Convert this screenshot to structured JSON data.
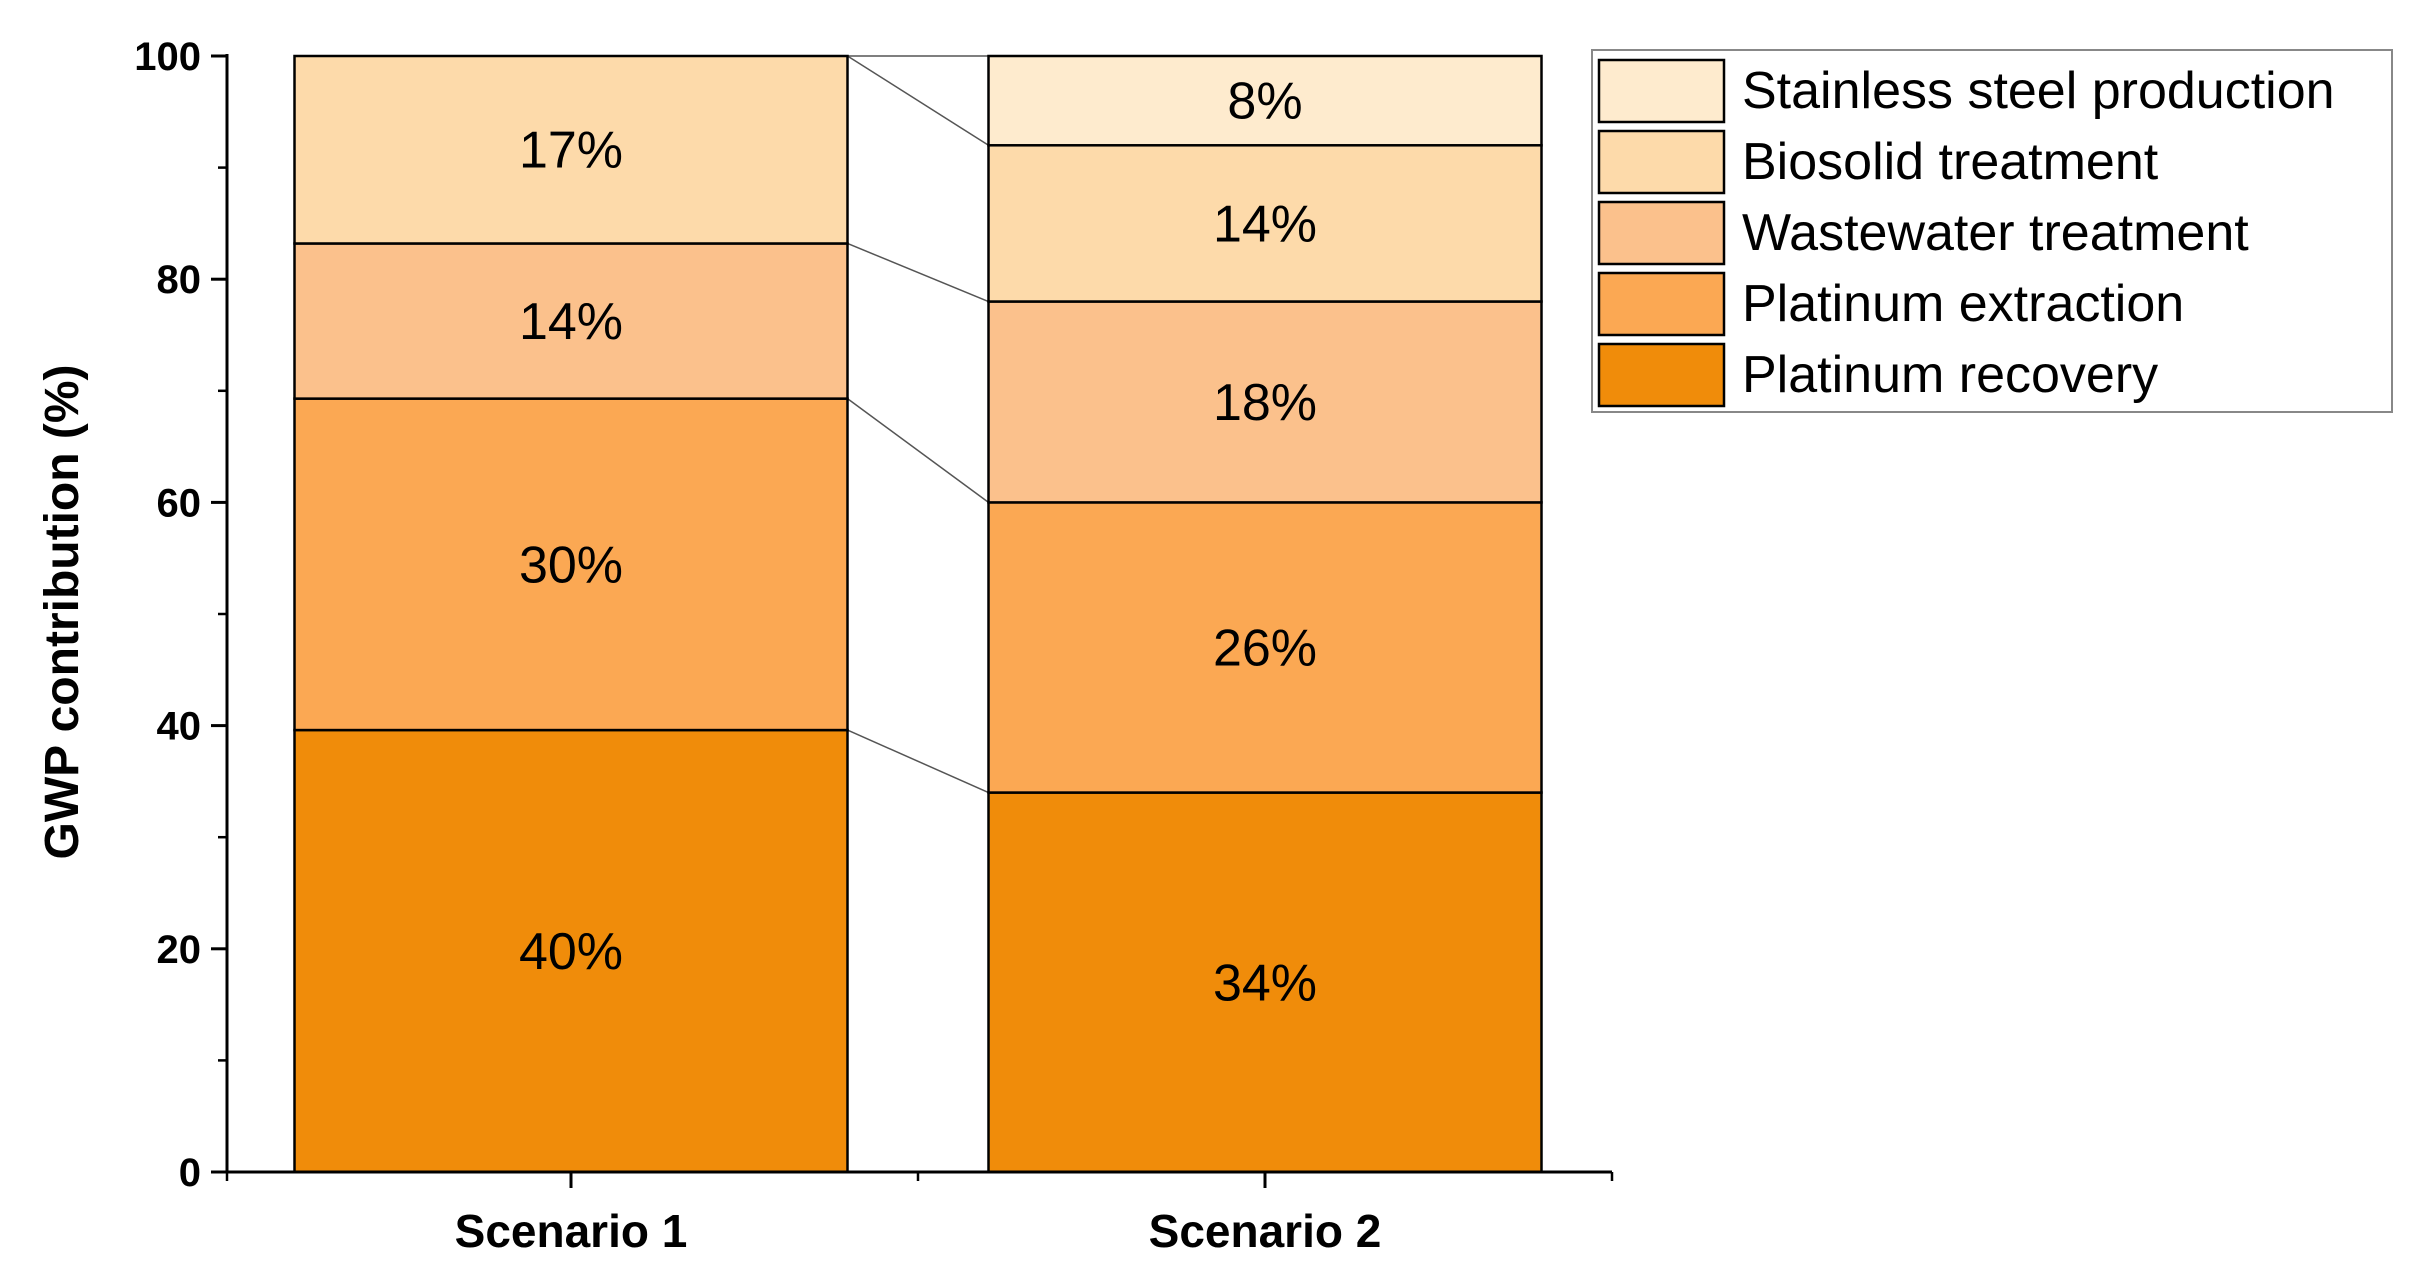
{
  "chart_data": {
    "type": "bar",
    "stacked": true,
    "categories": [
      "Scenario 1",
      "Scenario 2"
    ],
    "ylabel": "GWP contribution (%)",
    "xlabel": "",
    "ylim": [
      0,
      100
    ],
    "yticks": [
      0,
      20,
      40,
      60,
      80,
      100
    ],
    "grid": false,
    "legend_position": "top-right",
    "series": [
      {
        "name": "Platinum recovery",
        "color": "#F08C0A",
        "values": [
          39.6,
          34
        ],
        "labels": [
          "40%",
          "34%"
        ]
      },
      {
        "name": "Platinum extraction",
        "color": "#FBA853",
        "values": [
          29.7,
          26
        ],
        "labels": [
          "30%",
          "26%"
        ]
      },
      {
        "name": "Wastewater treatment",
        "color": "#FBC18C",
        "values": [
          13.9,
          18
        ],
        "labels": [
          "14%",
          "18%"
        ]
      },
      {
        "name": "Biosolid treatment",
        "color": "#FDDAAA",
        "values": [
          16.8,
          14
        ],
        "labels": [
          "17%",
          "14%"
        ]
      },
      {
        "name": "Stainless steel production",
        "color": "#FEEBCE",
        "values": [
          0,
          8
        ],
        "labels": [
          "",
          "8%"
        ]
      }
    ]
  }
}
